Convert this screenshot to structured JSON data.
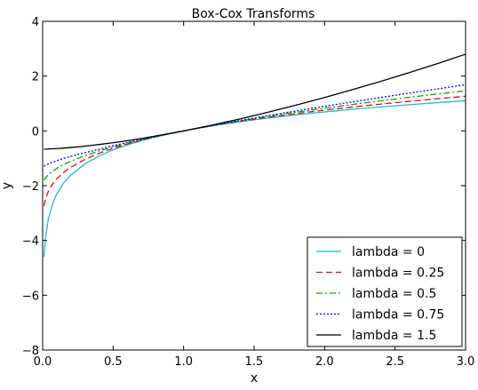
{
  "chart_data": {
    "type": "line",
    "title": "Box-Cox Transforms",
    "xlabel": "x",
    "ylabel": "y",
    "xlim": [
      0.0,
      3.0
    ],
    "ylim": [
      -8,
      4
    ],
    "xticks": [
      0.0,
      0.5,
      1.0,
      1.5,
      2.0,
      2.5,
      3.0
    ],
    "xtick_labels": [
      "0.0",
      "0.5",
      "1.0",
      "1.5",
      "2.0",
      "2.5",
      "3.0"
    ],
    "yticks": [
      -8,
      -6,
      -4,
      -2,
      0,
      2,
      4
    ],
    "ytick_labels": [
      "−8",
      "−6",
      "−4",
      "−2",
      "0",
      "2",
      "4"
    ],
    "grid": false,
    "legend_position": "lower-right",
    "x": [
      0.01,
      0.02,
      0.04,
      0.07,
      0.1,
      0.15,
      0.2,
      0.3,
      0.4,
      0.5,
      0.6,
      0.7,
      0.8,
      0.9,
      1.0,
      1.1,
      1.2,
      1.4,
      1.6,
      1.8,
      2.0,
      2.2,
      2.4,
      2.6,
      2.8,
      3.0
    ],
    "series": [
      {
        "name": "lambda = 0",
        "color": "#17becf",
        "dash": "solid",
        "values": [
          -4.605,
          -3.912,
          -3.219,
          -2.659,
          -2.303,
          -1.897,
          -1.609,
          -1.204,
          -0.916,
          -0.693,
          -0.511,
          -0.357,
          -0.223,
          -0.105,
          0.0,
          0.095,
          0.182,
          0.336,
          0.47,
          0.588,
          0.693,
          0.788,
          0.875,
          0.956,
          1.03,
          1.099
        ]
      },
      {
        "name": "lambda = 0.25",
        "color": "#ff0000",
        "dash": "dashed",
        "values": [
          -2.735,
          -2.496,
          -2.211,
          -1.941,
          -1.751,
          -1.511,
          -1.325,
          -1.04,
          -0.818,
          -0.636,
          -0.48,
          -0.343,
          -0.217,
          -0.104,
          0.0,
          0.096,
          0.187,
          0.352,
          0.499,
          0.633,
          0.757,
          0.872,
          0.979,
          1.079,
          1.174,
          1.264
        ]
      },
      {
        "name": "lambda = 0.5",
        "color": "#00aa00",
        "dash": "dashdot",
        "values": [
          -1.8,
          -1.717,
          -1.6,
          -1.471,
          -1.368,
          -1.225,
          -1.106,
          -0.905,
          -0.735,
          -0.586,
          -0.451,
          -0.327,
          -0.211,
          -0.103,
          0.0,
          0.098,
          0.191,
          0.366,
          0.53,
          0.683,
          0.828,
          0.966,
          1.098,
          1.225,
          1.347,
          1.464
        ]
      },
      {
        "name": "lambda = 0.75",
        "color": "#0000ff",
        "dash": "dotted",
        "values": [
          -1.292,
          -1.26,
          -1.208,
          -1.144,
          -1.088,
          -1.004,
          -0.93,
          -0.795,
          -0.674,
          -0.542,
          -0.424,
          -0.311,
          -0.205,
          -0.101,
          0.0,
          0.098,
          0.194,
          0.38,
          0.558,
          0.73,
          0.898,
          1.062,
          1.222,
          1.379,
          1.533,
          1.684
        ]
      },
      {
        "name": "lambda = 1.5",
        "color": "#000000",
        "dash": "solid",
        "values": [
          -0.666,
          -0.665,
          -0.662,
          -0.654,
          -0.645,
          -0.628,
          -0.607,
          -0.557,
          -0.498,
          -0.431,
          -0.357,
          -0.277,
          -0.189,
          -0.097,
          0.0,
          0.102,
          0.21,
          0.437,
          0.683,
          0.943,
          1.219,
          1.509,
          1.812,
          2.128,
          2.457,
          2.798
        ]
      }
    ]
  }
}
